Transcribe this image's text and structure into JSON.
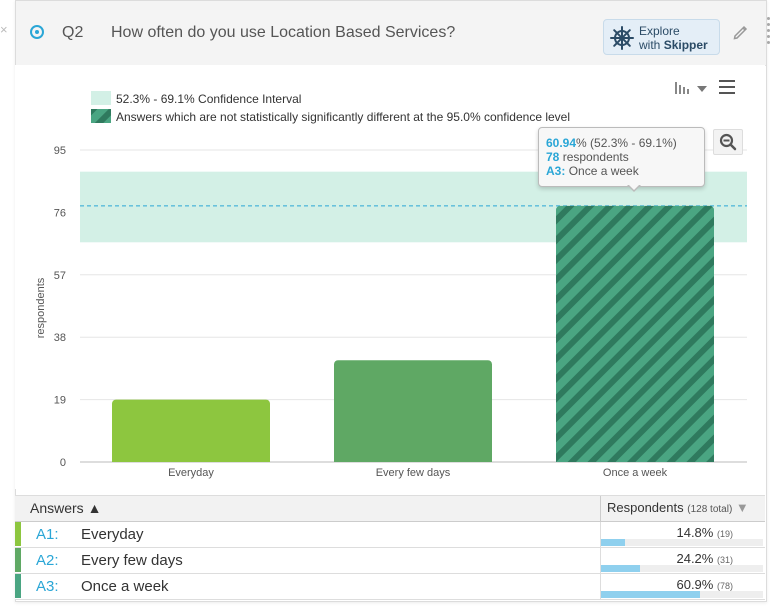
{
  "question": {
    "number": "Q2",
    "text": "How often do you use Location Based Services?"
  },
  "skipper": {
    "line1": "Explore",
    "line2_prefix": "with",
    "line2_brand": "Skipper"
  },
  "icons": {
    "radio": "radio-selected-icon",
    "skipper": "ship-wheel-icon",
    "edit": "pencil-icon",
    "chart_type": "bar-chart-icon",
    "menu": "hamburger-menu-icon",
    "zoom": "zoom-out-icon"
  },
  "colors": {
    "accent": "#2aa6d6",
    "bar_a1": "#8dc63f",
    "bar_a2": "#5fa864",
    "bar_a3": "#4aa582",
    "confidence_band": "#d3f0e6"
  },
  "legend": {
    "confidence": "52.3% - 69.1% Confidence Interval",
    "not_significant": "Answers which are not statistically significantly different at the 95.0% confidence level"
  },
  "tooltip": {
    "pct": "60.94",
    "range": "% (52.3% - 69.1%)",
    "count": "78",
    "count_label": "respondents",
    "code": "A3:",
    "answer": "Once a week"
  },
  "chart_data": {
    "type": "bar",
    "categories": [
      "Everyday",
      "Every few days",
      "Once a week"
    ],
    "values": [
      19,
      31,
      78
    ],
    "ylabel": "respondents",
    "yticks": [
      "0",
      "19",
      "38",
      "57",
      "76",
      "95"
    ],
    "ylim": [
      0,
      95
    ],
    "confidence_band": [
      66.9,
      88.4
    ],
    "reference_line": 78,
    "hatched_category": "Once a week",
    "grid": true
  },
  "table": {
    "col_answers": "Answers",
    "col_respondents": "Respondents",
    "total_label": "(128 total)",
    "rows": [
      {
        "code": "A1:",
        "label": "Everyday",
        "pct": "14.8%",
        "count": "(19)",
        "fraction": 0.148
      },
      {
        "code": "A2:",
        "label": "Every few days",
        "pct": "24.2%",
        "count": "(31)",
        "fraction": 0.242
      },
      {
        "code": "A3:",
        "label": "Once a week",
        "pct": "60.9%",
        "count": "(78)",
        "fraction": 0.609
      }
    ]
  }
}
